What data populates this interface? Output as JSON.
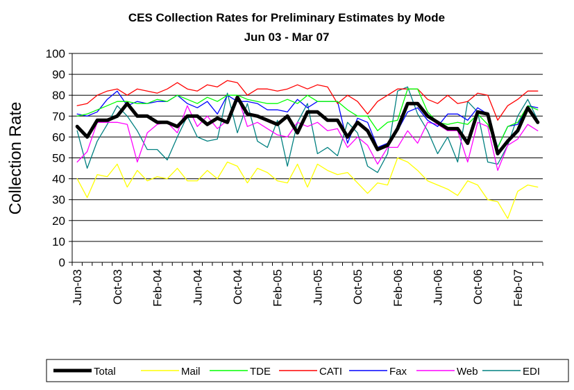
{
  "chart_data": {
    "type": "line",
    "title": "CES Collection Rates for Preliminary Estimates by Mode",
    "subtitle": "Jun 03 - Mar 07",
    "ylabel": "Collection Rate",
    "xlabel": "",
    "ylim": [
      0,
      100
    ],
    "yticks": [
      "0",
      "10",
      "20",
      "30",
      "40",
      "50",
      "60",
      "70",
      "80",
      "90",
      "100"
    ],
    "xtick_labels": [
      "Jun-03",
      "Oct-03",
      "Feb-04",
      "Jun-04",
      "Oct-04",
      "Feb-05",
      "Jun-05",
      "Oct-05",
      "Feb-06",
      "Jun-06",
      "Oct-06",
      "Feb-07"
    ],
    "grid": true,
    "legend_position": "bottom",
    "series": [
      {
        "name": "Total",
        "color": "#000000",
        "values": [
          65,
          60,
          68,
          68,
          70,
          76,
          70,
          70,
          67,
          67,
          65,
          70,
          70,
          66,
          69,
          67,
          79,
          71,
          70,
          68,
          66,
          70,
          62,
          72,
          72,
          68,
          68,
          60,
          67,
          63,
          54,
          56,
          64,
          76,
          76,
          70,
          67,
          64,
          64,
          57,
          72,
          71,
          52,
          58,
          63,
          74,
          67
        ]
      },
      {
        "name": "Mail",
        "color": "#ffff00",
        "values": [
          40,
          31,
          42,
          41,
          47,
          36,
          44,
          39,
          41,
          40,
          45,
          39,
          39,
          44,
          40,
          48,
          46,
          38,
          45,
          43,
          39,
          38,
          47,
          36,
          47,
          44,
          42,
          43,
          38,
          33,
          38,
          37,
          50,
          48,
          44,
          39,
          37,
          35,
          32,
          39,
          37,
          30,
          29,
          21,
          34,
          37,
          36
        ]
      },
      {
        "name": "TDE",
        "color": "#00ff00",
        "values": [
          70,
          71,
          73,
          75,
          77,
          77,
          76,
          76,
          78,
          77,
          80,
          78,
          76,
          79,
          77,
          80,
          80,
          78,
          77,
          76,
          76,
          78,
          76,
          80,
          77,
          77,
          77,
          73,
          70,
          70,
          63,
          67,
          68,
          83,
          83,
          72,
          67,
          66,
          67,
          66,
          71,
          66,
          55,
          65,
          67,
          75,
          73
        ]
      },
      {
        "name": "CATI",
        "color": "#ff0000",
        "values": [
          75,
          76,
          80,
          82,
          83,
          80,
          83,
          82,
          81,
          83,
          86,
          83,
          82,
          85,
          84,
          87,
          86,
          80,
          83,
          83,
          82,
          83,
          85,
          83,
          85,
          84,
          76,
          80,
          77,
          71,
          77,
          80,
          83,
          83,
          83,
          78,
          76,
          80,
          76,
          77,
          81,
          80,
          68,
          75,
          78,
          82,
          82
        ]
      },
      {
        "name": "Fax",
        "color": "#0000ff",
        "values": [
          71,
          70,
          72,
          78,
          82,
          75,
          77,
          76,
          77,
          77,
          80,
          76,
          74,
          77,
          71,
          80,
          77,
          77,
          76,
          73,
          73,
          72,
          78,
          74,
          77,
          77,
          77,
          57,
          69,
          67,
          55,
          57,
          63,
          72,
          74,
          68,
          65,
          71,
          71,
          68,
          74,
          71,
          55,
          65,
          66,
          75,
          74
        ]
      },
      {
        "name": "Web",
        "color": "#ff00ff",
        "values": [
          48,
          53,
          67,
          67,
          67,
          66,
          48,
          62,
          66,
          67,
          62,
          75,
          65,
          70,
          64,
          68,
          80,
          65,
          67,
          64,
          61,
          60,
          67,
          65,
          67,
          63,
          64,
          55,
          60,
          56,
          47,
          55,
          55,
          63,
          57,
          67,
          66,
          63,
          63,
          48,
          67,
          65,
          44,
          56,
          59,
          66,
          63
        ]
      },
      {
        "name": "EDI",
        "color": "#008080",
        "values": [
          63,
          45,
          58,
          66,
          75,
          70,
          63,
          54,
          54,
          49,
          60,
          70,
          60,
          58,
          59,
          81,
          62,
          76,
          58,
          55,
          68,
          46,
          67,
          76,
          52,
          55,
          51,
          67,
          62,
          46,
          43,
          52,
          82,
          84,
          71,
          63,
          52,
          60,
          48,
          77,
          72,
          48,
          47,
          56,
          70,
          78,
          68
        ]
      }
    ]
  }
}
